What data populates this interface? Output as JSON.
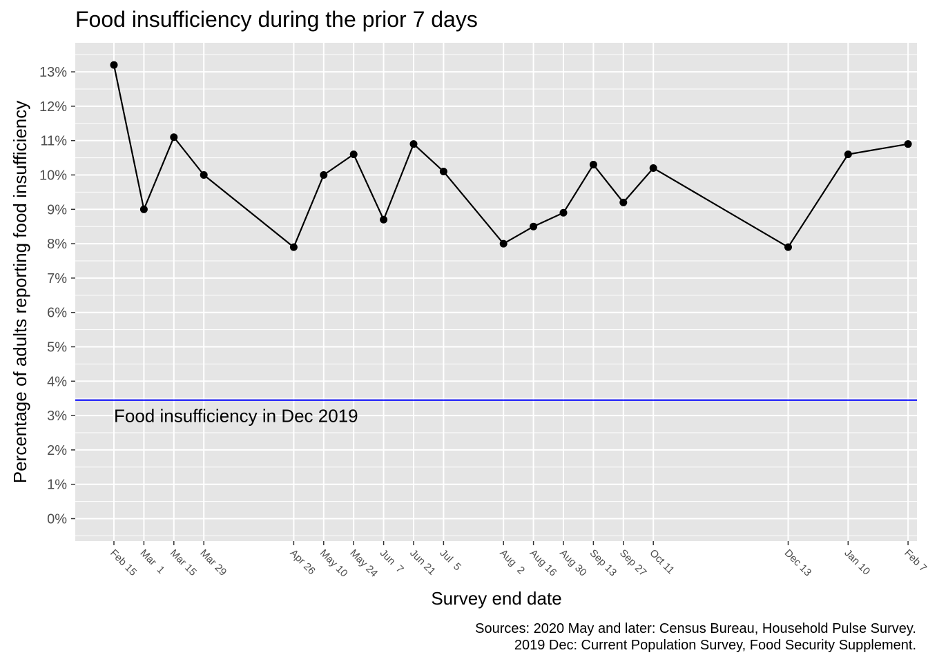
{
  "chart_data": {
    "type": "line",
    "title": "Food insufficiency during the prior 7 days",
    "xlabel": "Survey end date",
    "ylabel": "Percentage of adults reporting food insufficiency",
    "ylim": [
      0,
      13
    ],
    "y_tick_labels": [
      "0%",
      "1%",
      "2%",
      "3%",
      "4%",
      "5%",
      "6%",
      "7%",
      "8%",
      "9%",
      "10%",
      "11%",
      "12%",
      "13%"
    ],
    "grid": true,
    "legend": "none",
    "categories": [
      "Feb 15",
      "Mar  1",
      "Mar 15",
      "Mar 29",
      "Apr 26",
      "May 10",
      "May 24",
      "Jun  7",
      "Jun 21",
      "Jul  5",
      "Aug  2",
      "Aug 16",
      "Aug 30",
      "Sep 13",
      "Sep 27",
      "Oct 11",
      "Dec 13",
      "Jan 10",
      "Feb 7"
    ],
    "x_week_index": [
      0,
      2,
      4,
      6,
      12,
      14,
      16,
      18,
      20,
      22,
      26,
      28,
      30,
      32,
      34,
      36,
      45,
      49,
      53
    ],
    "series": [
      {
        "values": [
          13.2,
          9.0,
          11.1,
          10.0,
          7.9,
          10.0,
          10.6,
          8.7,
          10.9,
          10.1,
          8.0,
          8.5,
          8.9,
          10.3,
          9.2,
          10.2,
          7.9,
          10.6,
          10.9
        ],
        "color": "#000000"
      }
    ],
    "reference_line": {
      "value": 3.45,
      "label": "Food insufficiency in Dec 2019",
      "color": "#0000ff"
    },
    "caption": [
      "Sources: 2020 May and later: Census Bureau, Household Pulse Survey.",
      "2019 Dec: Current Population Survey, Food Security Supplement."
    ],
    "panel_background": "#e5e5e5",
    "grid_color": "#ffffff"
  }
}
